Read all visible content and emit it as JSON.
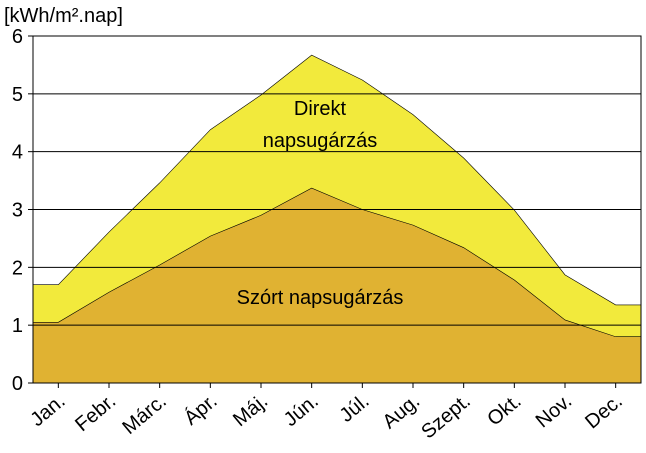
{
  "chart_data": {
    "type": "stacked_area",
    "title": "[kWh/m².nap]",
    "categories": [
      "Jan.",
      "Febr.",
      "Márc.",
      "Ápr.",
      "Máj.",
      "Jún.",
      "Júl.",
      "Aug.",
      "Szept.",
      "Okt.",
      "Nov.",
      "Dec."
    ],
    "series": [
      {
        "name": "Szórt napsugárzás",
        "color": "#e0b232",
        "values": [
          1.05,
          1.57,
          2.04,
          2.54,
          2.9,
          3.37,
          3.0,
          2.73,
          2.34,
          1.78,
          1.09,
          0.8
        ]
      },
      {
        "name": "Direkt napsugárzás",
        "color": "#f2ea3c",
        "values": [
          0.65,
          1.04,
          1.42,
          1.84,
          2.08,
          2.3,
          2.24,
          1.91,
          1.55,
          1.21,
          0.78,
          0.55
        ]
      }
    ],
    "ylim": [
      0,
      6
    ],
    "yticks": [
      0,
      1,
      2,
      3,
      4,
      5,
      6
    ],
    "grid": true
  }
}
